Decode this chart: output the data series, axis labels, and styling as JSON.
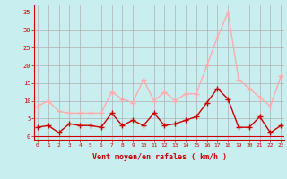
{
  "hours": [
    0,
    1,
    2,
    3,
    4,
    5,
    6,
    7,
    8,
    9,
    10,
    11,
    12,
    13,
    14,
    15,
    16,
    17,
    18,
    19,
    20,
    21,
    22,
    23
  ],
  "wind_avg": [
    2.5,
    3.0,
    1.0,
    3.5,
    3.0,
    3.0,
    2.5,
    6.5,
    3.0,
    4.5,
    3.0,
    6.5,
    3.0,
    3.5,
    4.5,
    5.5,
    9.5,
    13.5,
    10.5,
    2.5,
    2.5,
    5.5,
    1.0,
    3.0
  ],
  "wind_gust": [
    8.5,
    10.0,
    7.0,
    6.5,
    6.5,
    6.5,
    6.5,
    12.5,
    10.5,
    9.5,
    16.0,
    10.0,
    12.5,
    10.0,
    12.0,
    12.0,
    20.0,
    28.0,
    35.0,
    16.0,
    13.5,
    11.0,
    8.5,
    17.0
  ],
  "avg_color": "#cc0000",
  "gust_color": "#ffaaaa",
  "bg_color": "#c8eef0",
  "grid_color": "#b0b0b0",
  "axis_color": "#cc0000",
  "xlabel": "Vent moyen/en rafales ( km/h )",
  "ylim": [
    -1,
    37
  ],
  "yticks": [
    0,
    5,
    10,
    15,
    20,
    25,
    30,
    35
  ],
  "xlim": [
    -0.3,
    23.3
  ],
  "marker_size": 4
}
